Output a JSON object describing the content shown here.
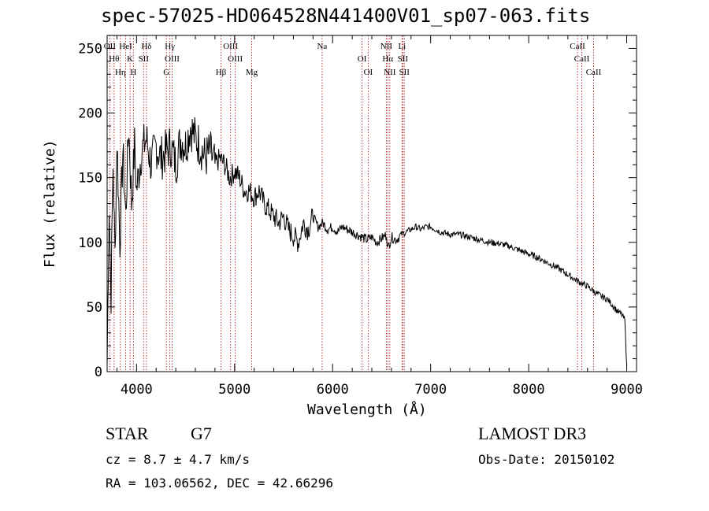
{
  "chart_data": {
    "type": "line",
    "title": "spec-57025-HD064528N441400V01_sp07-063.fits",
    "xlabel": "Wavelength (Å)",
    "ylabel": "Flux (relative)",
    "xlim": [
      3700,
      9100
    ],
    "ylim": [
      0,
      260
    ],
    "xticks": [
      4000,
      5000,
      6000,
      7000,
      8000,
      9000
    ],
    "xtick_labels": [
      "4000",
      "5000",
      "6000",
      "7000",
      "8000",
      "9000"
    ],
    "yticks": [
      0,
      50,
      100,
      150,
      200,
      250
    ],
    "ytick_labels": [
      "0",
      "50",
      "100",
      "150",
      "200",
      "250"
    ],
    "grid": false,
    "series": [
      {
        "name": "flux",
        "x": [
          3700,
          3720,
          3740,
          3760,
          3780,
          3800,
          3830,
          3860,
          3890,
          3920,
          3950,
          3980,
          4000,
          4050,
          4100,
          4150,
          4200,
          4250,
          4300,
          4350,
          4400,
          4450,
          4500,
          4550,
          4600,
          4650,
          4700,
          4750,
          4800,
          4850,
          4900,
          4950,
          5000,
          5050,
          5100,
          5150,
          5200,
          5250,
          5300,
          5350,
          5400,
          5450,
          5500,
          5550,
          5600,
          5650,
          5700,
          5750,
          5800,
          5850,
          5900,
          5950,
          6000,
          6050,
          6100,
          6150,
          6200,
          6250,
          6300,
          6350,
          6400,
          6450,
          6500,
          6550,
          6563,
          6600,
          6650,
          6700,
          6750,
          6800,
          6850,
          6900,
          6950,
          7000,
          7100,
          7200,
          7300,
          7400,
          7500,
          7600,
          7700,
          7800,
          7900,
          8000,
          8100,
          8200,
          8300,
          8400,
          8500,
          8600,
          8700,
          8800,
          8850,
          8900,
          8950,
          8980,
          9000
        ],
        "values": [
          5,
          130,
          60,
          160,
          90,
          180,
          100,
          170,
          120,
          190,
          130,
          175,
          140,
          170,
          180,
          160,
          175,
          165,
          170,
          175,
          160,
          180,
          175,
          190,
          180,
          175,
          165,
          170,
          160,
          165,
          160,
          150,
          155,
          150,
          140,
          140,
          135,
          140,
          130,
          125,
          120,
          115,
          120,
          110,
          105,
          100,
          115,
          110,
          120,
          112,
          115,
          110,
          112,
          108,
          112,
          110,
          108,
          106,
          104,
          102,
          104,
          100,
          103,
          106,
          95,
          104,
          102,
          106,
          108,
          110,
          112,
          110,
          112,
          112,
          108,
          106,
          106,
          104,
          102,
          100,
          99,
          97,
          94,
          91,
          88,
          84,
          80,
          75,
          70,
          66,
          60,
          56,
          52,
          47,
          44,
          40,
          5
        ]
      }
    ],
    "lines": [
      {
        "name": "OII",
        "x": 3727
      },
      {
        "name": "Hθ",
        "x": 3771
      },
      {
        "name": "Hη",
        "x": 3835
      },
      {
        "name": "HeI",
        "x": 3889
      },
      {
        "name": "K",
        "x": 3934
      },
      {
        "name": "H",
        "x": 3968
      },
      {
        "name": "Hδ",
        "x": 4101
      },
      {
        "name": "SII",
        "x": 4072
      },
      {
        "name": "G",
        "x": 4304
      },
      {
        "name": "Hγ",
        "x": 4340
      },
      {
        "name": "OIII",
        "x": 4363
      },
      {
        "name": "Hβ",
        "x": 4861
      },
      {
        "name": "OIII",
        "x": 4959
      },
      {
        "name": "OIII",
        "x": 5007
      },
      {
        "name": "Mg",
        "x": 5175
      },
      {
        "name": "Na",
        "x": 5893
      },
      {
        "name": "OI",
        "x": 6300
      },
      {
        "name": "OI",
        "x": 6363
      },
      {
        "name": "NII",
        "x": 6548
      },
      {
        "name": "Hα",
        "x": 6563
      },
      {
        "name": "NII",
        "x": 6583
      },
      {
        "name": "Li",
        "x": 6708
      },
      {
        "name": "SII",
        "x": 6716
      },
      {
        "name": "SII",
        "x": 6731
      },
      {
        "name": "CaII",
        "x": 8498
      },
      {
        "name": "CaII",
        "x": 8542
      },
      {
        "name": "CaII",
        "x": 8662
      }
    ]
  },
  "info": {
    "object_class": "STAR",
    "subclass": "G7",
    "survey": "LAMOST DR3",
    "redshift": "cz = 8.7 ± 4.7 km/s",
    "obs_date": "Obs-Date: 20150102",
    "coords": "RA = 103.06562, DEC =  42.66296"
  }
}
